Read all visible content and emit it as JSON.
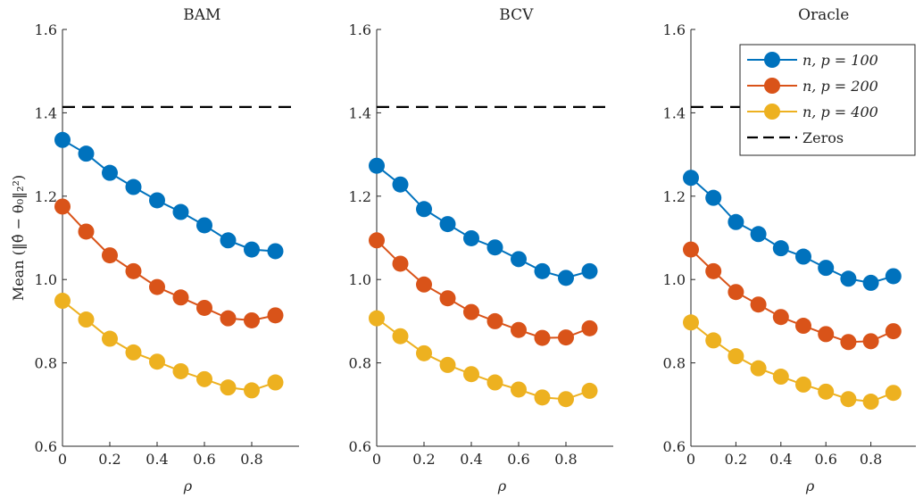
{
  "chart_data": [
    {
      "type": "line",
      "title": "BAM",
      "xlabel": "ρ",
      "ylabel": "Mean (‖θ̂ − θ₀‖₂²)",
      "xlim": [
        0,
        1
      ],
      "ylim": [
        0.6,
        1.6
      ],
      "xticks": [
        "0",
        "0.2",
        "0.4",
        "0.6",
        "0.8"
      ],
      "yticks": [
        "0.6",
        "0.8",
        "1.0",
        "1.2",
        "1.4",
        "1.6"
      ],
      "x": [
        0,
        0.1,
        0.2,
        0.3,
        0.4,
        0.5,
        0.6,
        0.7,
        0.8,
        0.9
      ],
      "series": [
        {
          "name": "n, p = 100",
          "color": "#0072BD",
          "values": [
            1.335,
            1.302,
            1.256,
            1.222,
            1.19,
            1.162,
            1.13,
            1.094,
            1.072,
            1.068
          ]
        },
        {
          "name": "n, p = 200",
          "color": "#D95319",
          "values": [
            1.175,
            1.115,
            1.058,
            1.02,
            0.982,
            0.957,
            0.932,
            0.907,
            0.902,
            0.914
          ]
        },
        {
          "name": "n, p = 400",
          "color": "#EDB120",
          "values": [
            0.949,
            0.904,
            0.858,
            0.825,
            0.803,
            0.78,
            0.761,
            0.741,
            0.734,
            0.753
          ]
        }
      ],
      "reference": {
        "name": "Zeros",
        "value": 1.414,
        "style": "dashed",
        "color": "#000000"
      },
      "grid": false
    },
    {
      "type": "line",
      "title": "BCV",
      "xlabel": "ρ",
      "ylabel": "",
      "xlim": [
        0,
        1
      ],
      "ylim": [
        0.6,
        1.6
      ],
      "xticks": [
        "0",
        "0.2",
        "0.4",
        "0.6",
        "0.8"
      ],
      "yticks": [
        "0.6",
        "0.8",
        "1.0",
        "1.2",
        "1.4",
        "1.6"
      ],
      "x": [
        0,
        0.1,
        0.2,
        0.3,
        0.4,
        0.5,
        0.6,
        0.7,
        0.8,
        0.9
      ],
      "series": [
        {
          "name": "n, p = 100",
          "color": "#0072BD",
          "values": [
            1.273,
            1.228,
            1.169,
            1.133,
            1.099,
            1.077,
            1.049,
            1.02,
            1.004,
            1.02
          ]
        },
        {
          "name": "n, p = 200",
          "color": "#D95319",
          "values": [
            1.094,
            1.038,
            0.988,
            0.955,
            0.922,
            0.9,
            0.879,
            0.86,
            0.861,
            0.883
          ]
        },
        {
          "name": "n, p = 400",
          "color": "#EDB120",
          "values": [
            0.907,
            0.864,
            0.823,
            0.795,
            0.773,
            0.753,
            0.736,
            0.717,
            0.713,
            0.733
          ]
        }
      ],
      "reference": {
        "name": "Zeros",
        "value": 1.414,
        "style": "dashed",
        "color": "#000000"
      },
      "grid": false
    },
    {
      "type": "line",
      "title": "Oracle",
      "xlabel": "ρ",
      "ylabel": "",
      "xlim": [
        0,
        1
      ],
      "ylim": [
        0.6,
        1.6
      ],
      "xticks": [
        "0",
        "0.2",
        "0.4",
        "0.6",
        "0.8"
      ],
      "yticks": [
        "0.6",
        "0.8",
        "1.0",
        "1.2",
        "1.4",
        "1.6"
      ],
      "x": [
        0,
        0.1,
        0.2,
        0.3,
        0.4,
        0.5,
        0.6,
        0.7,
        0.8,
        0.9
      ],
      "series": [
        {
          "name": "n, p = 100",
          "color": "#0072BD",
          "values": [
            1.244,
            1.196,
            1.138,
            1.109,
            1.075,
            1.055,
            1.028,
            1.002,
            0.992,
            1.008
          ]
        },
        {
          "name": "n, p = 200",
          "color": "#D95319",
          "values": [
            1.072,
            1.02,
            0.97,
            0.94,
            0.91,
            0.889,
            0.869,
            0.85,
            0.852,
            0.876
          ]
        },
        {
          "name": "n, p = 400",
          "color": "#EDB120",
          "values": [
            0.897,
            0.854,
            0.816,
            0.787,
            0.767,
            0.748,
            0.731,
            0.713,
            0.707,
            0.728
          ]
        }
      ],
      "reference": {
        "name": "Zeros",
        "value": 1.414,
        "style": "dashed",
        "color": "#000000"
      },
      "grid": false,
      "legend": {
        "placement": "top-right",
        "entries": [
          "n, p = 100",
          "n, p = 200",
          "n, p = 400",
          "Zeros"
        ]
      }
    }
  ]
}
